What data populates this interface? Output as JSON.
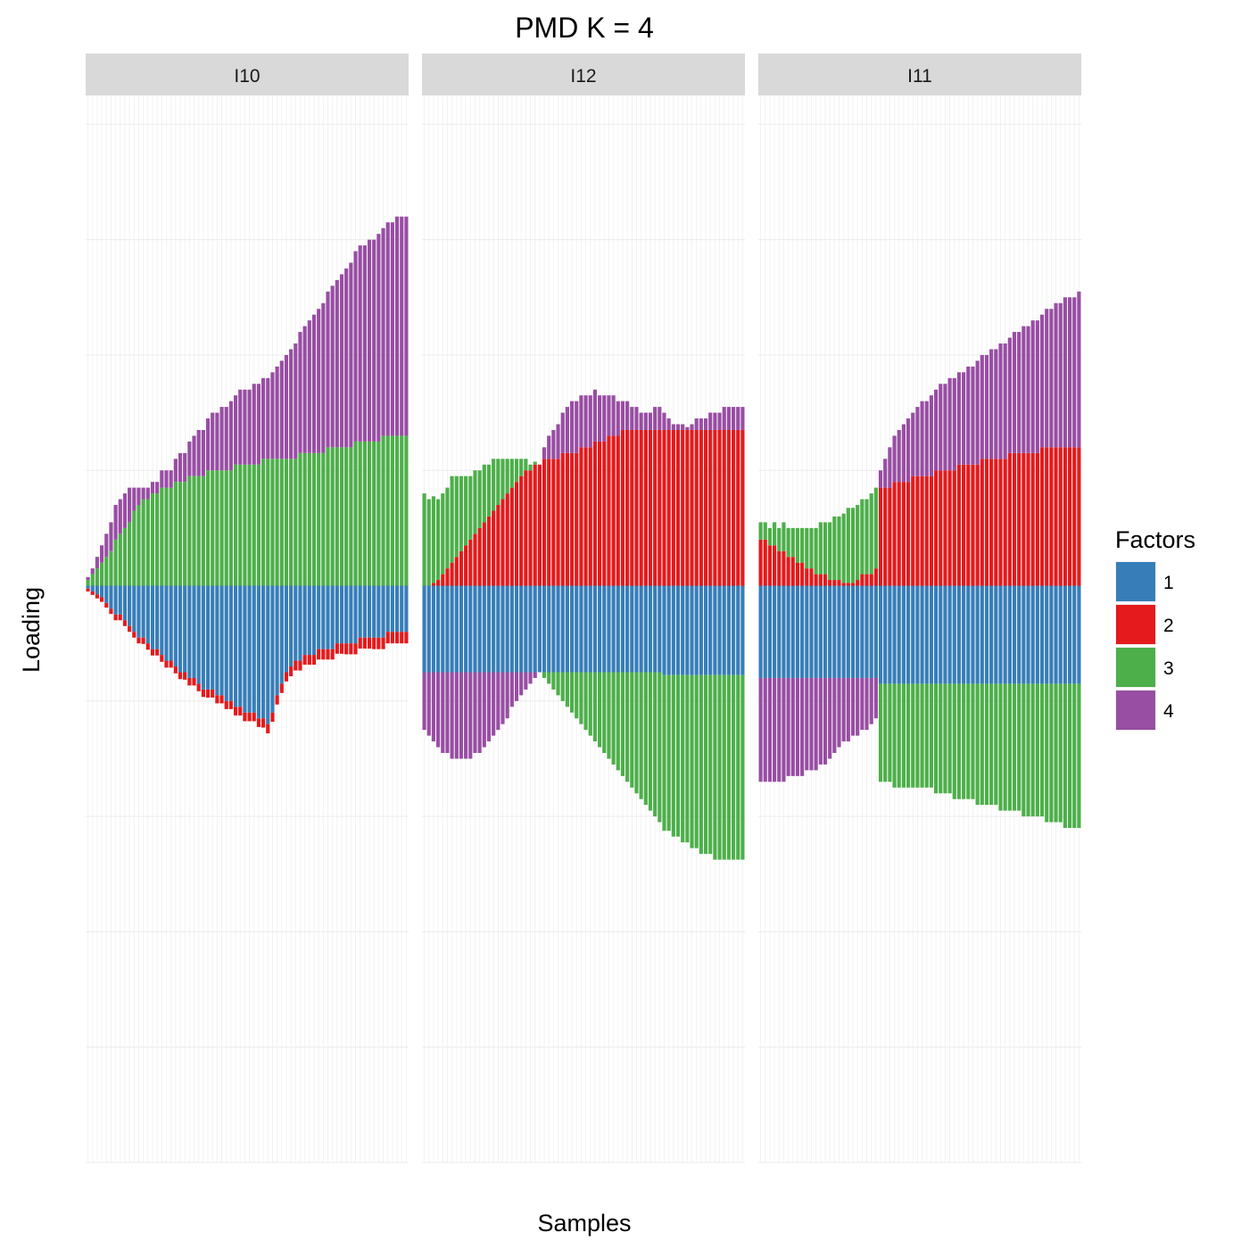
{
  "chart_data": {
    "type": "bar",
    "stacking": "diverging",
    "title": "PMD K = 4",
    "xlabel": "Samples",
    "ylabel": "Loading",
    "ylim": [
      -1.0,
      0.85
    ],
    "x_tick_labels": "none",
    "y_tick_labels": "none",
    "grid": true,
    "legend": {
      "title": "Factors",
      "placement": "right",
      "items": [
        {
          "label": "1",
          "color": "#377EB8"
        },
        {
          "label": "2",
          "color": "#E41A1C"
        },
        {
          "label": "3",
          "color": "#4DAF4A"
        },
        {
          "label": "4",
          "color": "#984EA3"
        }
      ]
    },
    "panels": [
      {
        "label": "I10",
        "n_samples": 70,
        "series": [
          {
            "name": "1",
            "values": [
              -0.005,
              -0.01,
              -0.015,
              -0.02,
              -0.03,
              -0.04,
              -0.05,
              -0.05,
              -0.06,
              -0.07,
              -0.08,
              -0.09,
              -0.09,
              -0.1,
              -0.11,
              -0.11,
              -0.12,
              -0.13,
              -0.13,
              -0.14,
              -0.15,
              -0.15,
              -0.16,
              -0.16,
              -0.17,
              -0.18,
              -0.18,
              -0.18,
              -0.19,
              -0.19,
              -0.2,
              -0.2,
              -0.21,
              -0.21,
              -0.22,
              -0.22,
              -0.22,
              -0.23,
              -0.23,
              -0.24,
              -0.22,
              -0.19,
              -0.17,
              -0.15,
              -0.14,
              -0.13,
              -0.13,
              -0.12,
              -0.12,
              -0.12,
              -0.11,
              -0.11,
              -0.11,
              -0.11,
              -0.1,
              -0.1,
              -0.1,
              -0.1,
              -0.1,
              -0.09,
              -0.09,
              -0.09,
              -0.09,
              -0.09,
              -0.09,
              -0.08,
              -0.08,
              -0.08,
              -0.08,
              -0.08
            ]
          },
          {
            "name": "2",
            "values": [
              -0.005,
              -0.006,
              -0.007,
              -0.008,
              -0.008,
              -0.009,
              -0.01,
              -0.01,
              -0.01,
              -0.01,
              -0.01,
              -0.01,
              -0.011,
              -0.011,
              -0.011,
              -0.011,
              -0.012,
              -0.012,
              -0.012,
              -0.012,
              -0.012,
              -0.013,
              -0.013,
              -0.013,
              -0.013,
              -0.013,
              -0.014,
              -0.014,
              -0.014,
              -0.014,
              -0.014,
              -0.014,
              -0.015,
              -0.015,
              -0.015,
              -0.015,
              -0.015,
              -0.015,
              -0.016,
              -0.016,
              -0.016,
              -0.016,
              -0.016,
              -0.016,
              -0.017,
              -0.017,
              -0.017,
              -0.017,
              -0.017,
              -0.017,
              -0.018,
              -0.018,
              -0.018,
              -0.018,
              -0.018,
              -0.018,
              -0.019,
              -0.019,
              -0.019,
              -0.019,
              -0.019,
              -0.019,
              -0.02,
              -0.02,
              -0.02,
              -0.02,
              -0.02,
              -0.02,
              -0.02,
              -0.02
            ]
          },
          {
            "name": "3",
            "values": [
              0.01,
              0.02,
              0.03,
              0.04,
              0.05,
              0.06,
              0.08,
              0.09,
              0.1,
              0.11,
              0.13,
              0.14,
              0.15,
              0.15,
              0.16,
              0.16,
              0.17,
              0.17,
              0.17,
              0.18,
              0.18,
              0.18,
              0.19,
              0.19,
              0.19,
              0.19,
              0.2,
              0.2,
              0.2,
              0.2,
              0.2,
              0.2,
              0.21,
              0.21,
              0.21,
              0.21,
              0.21,
              0.21,
              0.22,
              0.22,
              0.22,
              0.22,
              0.22,
              0.22,
              0.22,
              0.22,
              0.23,
              0.23,
              0.23,
              0.23,
              0.23,
              0.23,
              0.24,
              0.24,
              0.24,
              0.24,
              0.24,
              0.24,
              0.25,
              0.25,
              0.25,
              0.25,
              0.25,
              0.25,
              0.26,
              0.26,
              0.26,
              0.26,
              0.26,
              0.26
            ]
          },
          {
            "name": "4",
            "values": [
              0.005,
              0.01,
              0.02,
              0.03,
              0.04,
              0.05,
              0.06,
              0.06,
              0.06,
              0.06,
              0.04,
              0.03,
              0.02,
              0.02,
              0.02,
              0.02,
              0.03,
              0.03,
              0.03,
              0.04,
              0.05,
              0.05,
              0.06,
              0.07,
              0.08,
              0.08,
              0.09,
              0.1,
              0.1,
              0.11,
              0.11,
              0.12,
              0.12,
              0.13,
              0.13,
              0.13,
              0.14,
              0.14,
              0.14,
              0.14,
              0.15,
              0.16,
              0.17,
              0.18,
              0.19,
              0.2,
              0.21,
              0.22,
              0.23,
              0.24,
              0.25,
              0.26,
              0.27,
              0.28,
              0.29,
              0.3,
              0.31,
              0.32,
              0.33,
              0.34,
              0.34,
              0.35,
              0.35,
              0.36,
              0.36,
              0.37,
              0.37,
              0.38,
              0.38,
              0.38
            ]
          }
        ]
      },
      {
        "label": "I12",
        "n_samples": 70,
        "series": [
          {
            "name": "1",
            "values": [
              -0.15,
              -0.15,
              -0.15,
              -0.15,
              -0.15,
              -0.15,
              -0.15,
              -0.15,
              -0.15,
              -0.15,
              -0.15,
              -0.15,
              -0.15,
              -0.15,
              -0.15,
              -0.15,
              -0.15,
              -0.15,
              -0.15,
              -0.15,
              -0.15,
              -0.15,
              -0.15,
              -0.15,
              -0.15,
              -0.15,
              -0.15,
              -0.15,
              -0.15,
              -0.15,
              -0.15,
              -0.15,
              -0.15,
              -0.15,
              -0.15,
              -0.15,
              -0.15,
              -0.15,
              -0.15,
              -0.15,
              -0.15,
              -0.15,
              -0.15,
              -0.15,
              -0.15,
              -0.15,
              -0.15,
              -0.15,
              -0.15,
              -0.15,
              -0.15,
              -0.15,
              -0.155,
              -0.155,
              -0.155,
              -0.155,
              -0.155,
              -0.155,
              -0.155,
              -0.155,
              -0.155,
              -0.155,
              -0.155,
              -0.155,
              -0.155,
              -0.155,
              -0.155,
              -0.155,
              -0.155,
              -0.155
            ]
          },
          {
            "name": "2",
            "values": [
              0,
              0,
              0.005,
              0.01,
              0.02,
              0.03,
              0.04,
              0.05,
              0.06,
              0.07,
              0.08,
              0.09,
              0.1,
              0.11,
              0.12,
              0.13,
              0.14,
              0.15,
              0.16,
              0.17,
              0.18,
              0.19,
              0.2,
              0.2,
              0.21,
              0.21,
              0.22,
              0.22,
              0.22,
              0.22,
              0.23,
              0.23,
              0.23,
              0.23,
              0.24,
              0.24,
              0.24,
              0.25,
              0.25,
              0.25,
              0.26,
              0.26,
              0.26,
              0.27,
              0.27,
              0.27,
              0.27,
              0.27,
              0.27,
              0.27,
              0.27,
              0.27,
              0.27,
              0.27,
              0.27,
              0.27,
              0.27,
              0.27,
              0.27,
              0.27,
              0.27,
              0.27,
              0.27,
              0.27,
              0.27,
              0.27,
              0.27,
              0.27,
              0.27,
              0.27
            ]
          },
          {
            "name": "3",
            "values": [
              0.16,
              0.15,
              0.15,
              0.14,
              0.14,
              0.14,
              0.15,
              0.14,
              0.13,
              0.12,
              0.11,
              0.11,
              0.1,
              0.1,
              0.09,
              0.09,
              0.08,
              0.07,
              0.06,
              0.05,
              0.04,
              0.03,
              0.02,
              0.01,
              0.005,
              0,
              -0.01,
              -0.02,
              -0.03,
              -0.04,
              -0.05,
              -0.06,
              -0.07,
              -0.08,
              -0.09,
              -0.1,
              -0.11,
              -0.12,
              -0.13,
              -0.14,
              -0.15,
              -0.16,
              -0.17,
              -0.18,
              -0.19,
              -0.2,
              -0.21,
              -0.22,
              -0.23,
              -0.24,
              -0.25,
              -0.26,
              -0.27,
              -0.27,
              -0.28,
              -0.28,
              -0.29,
              -0.29,
              -0.3,
              -0.3,
              -0.31,
              -0.31,
              -0.31,
              -0.32,
              -0.32,
              -0.32,
              -0.32,
              -0.32,
              -0.32,
              -0.32
            ]
          },
          {
            "name": "4",
            "values": [
              -0.1,
              -0.11,
              -0.12,
              -0.13,
              -0.14,
              -0.14,
              -0.15,
              -0.15,
              -0.15,
              -0.15,
              -0.15,
              -0.14,
              -0.14,
              -0.13,
              -0.12,
              -0.11,
              -0.1,
              -0.09,
              -0.08,
              -0.06,
              -0.05,
              -0.04,
              -0.03,
              -0.02,
              -0.01,
              0,
              0.02,
              0.04,
              0.05,
              0.06,
              0.07,
              0.08,
              0.09,
              0.09,
              0.09,
              0.09,
              0.09,
              0.09,
              0.08,
              0.08,
              0.07,
              0.07,
              0.06,
              0.05,
              0.05,
              0.04,
              0.04,
              0.03,
              0.03,
              0.03,
              0.04,
              0.04,
              0.03,
              0.02,
              0.01,
              0.01,
              0.01,
              0.005,
              0.01,
              0.02,
              0.02,
              0.02,
              0.03,
              0.03,
              0.03,
              0.04,
              0.04,
              0.04,
              0.04,
              0.04
            ]
          }
        ]
      },
      {
        "label": "I11",
        "n_samples": 70,
        "series": [
          {
            "name": "1",
            "values": [
              -0.16,
              -0.16,
              -0.16,
              -0.16,
              -0.16,
              -0.16,
              -0.16,
              -0.16,
              -0.16,
              -0.16,
              -0.16,
              -0.16,
              -0.16,
              -0.16,
              -0.16,
              -0.16,
              -0.16,
              -0.16,
              -0.16,
              -0.16,
              -0.16,
              -0.16,
              -0.16,
              -0.16,
              -0.16,
              -0.16,
              -0.17,
              -0.17,
              -0.17,
              -0.17,
              -0.17,
              -0.17,
              -0.17,
              -0.17,
              -0.17,
              -0.17,
              -0.17,
              -0.17,
              -0.17,
              -0.17,
              -0.17,
              -0.17,
              -0.17,
              -0.17,
              -0.17,
              -0.17,
              -0.17,
              -0.17,
              -0.17,
              -0.17,
              -0.17,
              -0.17,
              -0.17,
              -0.17,
              -0.17,
              -0.17,
              -0.17,
              -0.17,
              -0.17,
              -0.17,
              -0.17,
              -0.17,
              -0.17,
              -0.17,
              -0.17,
              -0.17,
              -0.17,
              -0.17,
              -0.17,
              -0.17
            ]
          },
          {
            "name": "2",
            "values": [
              0.08,
              0.08,
              0.07,
              0.07,
              0.06,
              0.06,
              0.05,
              0.05,
              0.04,
              0.04,
              0.03,
              0.03,
              0.02,
              0.02,
              0.02,
              0.01,
              0.01,
              0.01,
              0.005,
              0.005,
              0.005,
              0.01,
              0.02,
              0.02,
              0.02,
              0.03,
              0.17,
              0.17,
              0.17,
              0.18,
              0.18,
              0.18,
              0.18,
              0.19,
              0.19,
              0.19,
              0.19,
              0.19,
              0.2,
              0.2,
              0.2,
              0.2,
              0.2,
              0.21,
              0.21,
              0.21,
              0.21,
              0.21,
              0.22,
              0.22,
              0.22,
              0.22,
              0.22,
              0.22,
              0.23,
              0.23,
              0.23,
              0.23,
              0.23,
              0.23,
              0.23,
              0.24,
              0.24,
              0.24,
              0.24,
              0.24,
              0.24,
              0.24,
              0.24,
              0.24
            ]
          },
          {
            "name": "3",
            "values": [
              0.03,
              0.03,
              0.03,
              0.04,
              0.04,
              0.05,
              0.05,
              0.05,
              0.06,
              0.06,
              0.07,
              0.07,
              0.08,
              0.09,
              0.09,
              0.1,
              0.11,
              0.11,
              0.12,
              0.13,
              0.13,
              0.13,
              0.13,
              0.13,
              0.14,
              0.14,
              -0.17,
              -0.17,
              -0.17,
              -0.18,
              -0.18,
              -0.18,
              -0.18,
              -0.18,
              -0.18,
              -0.18,
              -0.18,
              -0.18,
              -0.19,
              -0.19,
              -0.19,
              -0.19,
              -0.2,
              -0.2,
              -0.2,
              -0.2,
              -0.2,
              -0.21,
              -0.21,
              -0.21,
              -0.21,
              -0.21,
              -0.22,
              -0.22,
              -0.22,
              -0.22,
              -0.22,
              -0.23,
              -0.23,
              -0.23,
              -0.23,
              -0.23,
              -0.24,
              -0.24,
              -0.24,
              -0.24,
              -0.25,
              -0.25,
              -0.25,
              -0.25
            ]
          },
          {
            "name": "4",
            "values": [
              -0.18,
              -0.18,
              -0.18,
              -0.18,
              -0.18,
              -0.18,
              -0.17,
              -0.17,
              -0.17,
              -0.17,
              -0.16,
              -0.16,
              -0.16,
              -0.15,
              -0.15,
              -0.14,
              -0.13,
              -0.12,
              -0.11,
              -0.11,
              -0.1,
              -0.1,
              -0.09,
              -0.09,
              -0.08,
              -0.07,
              0.03,
              0.05,
              0.07,
              0.08,
              0.09,
              0.1,
              0.11,
              0.11,
              0.12,
              0.13,
              0.13,
              0.14,
              0.14,
              0.15,
              0.15,
              0.16,
              0.16,
              0.16,
              0.16,
              0.17,
              0.17,
              0.18,
              0.18,
              0.18,
              0.19,
              0.19,
              0.2,
              0.2,
              0.2,
              0.21,
              0.21,
              0.22,
              0.22,
              0.23,
              0.23,
              0.23,
              0.24,
              0.24,
              0.25,
              0.25,
              0.26,
              0.26,
              0.26,
              0.27
            ]
          }
        ]
      }
    ]
  }
}
